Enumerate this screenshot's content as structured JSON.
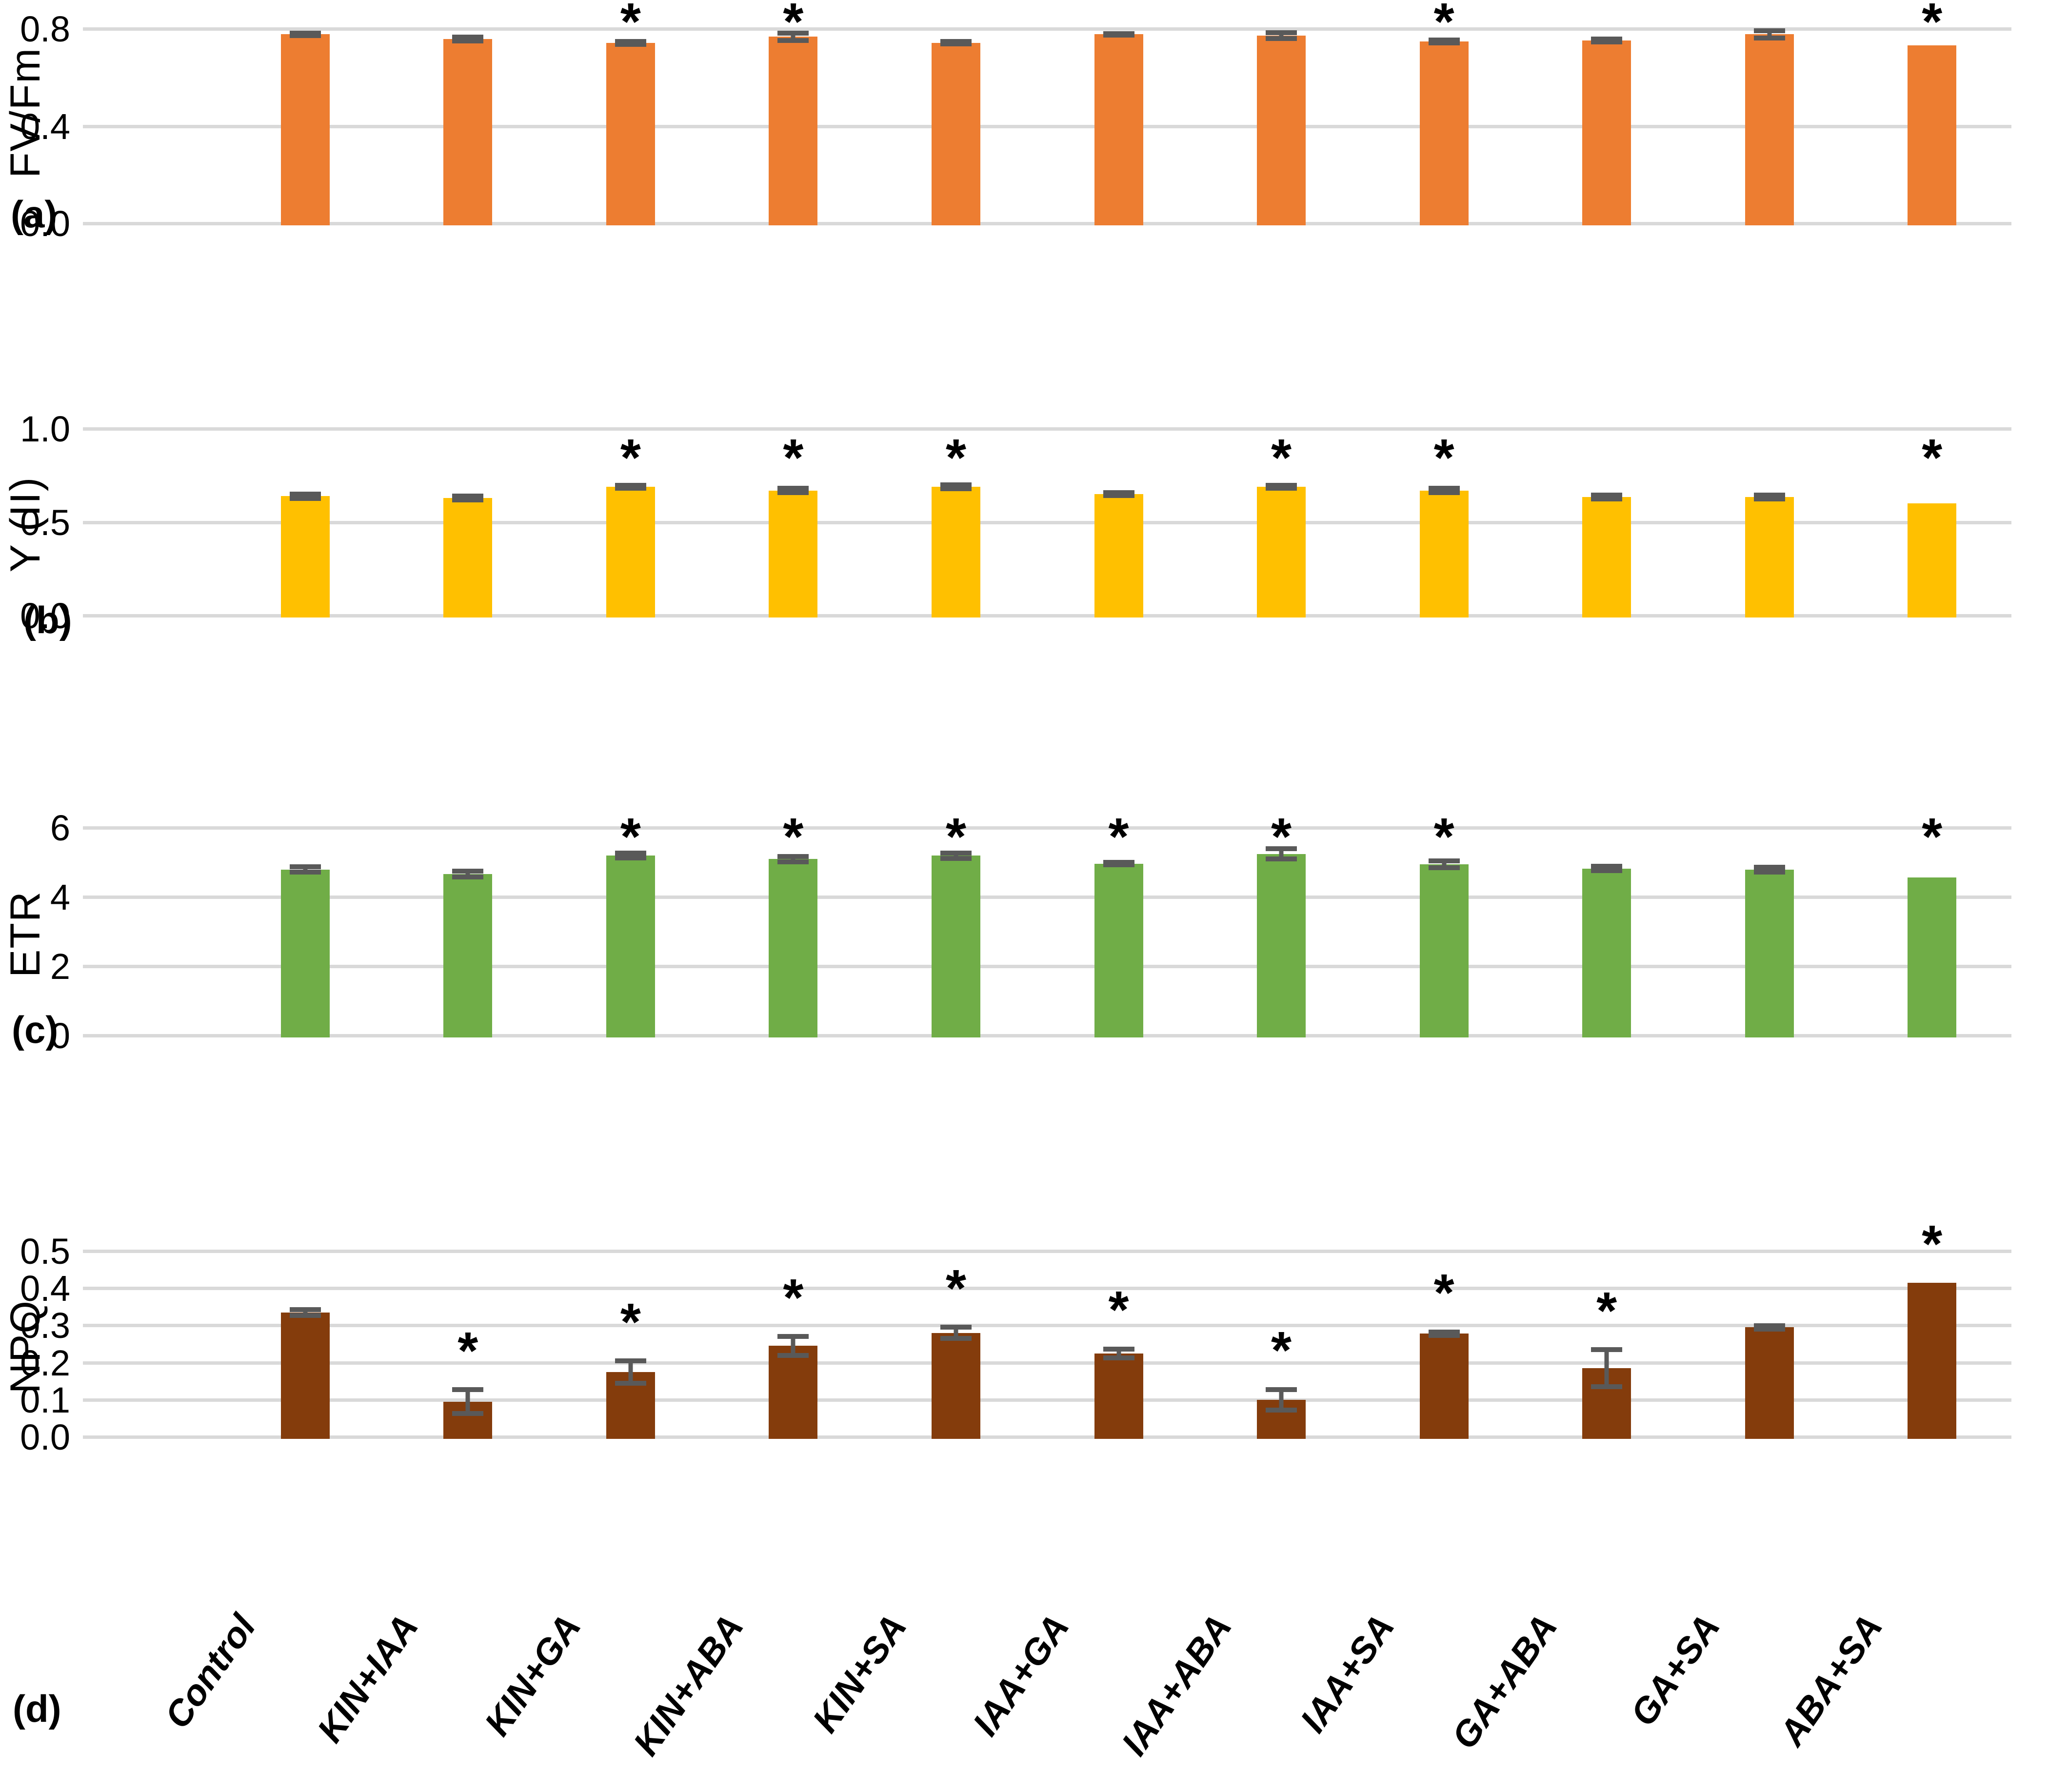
{
  "figure": {
    "panel_labels": [
      "(a)",
      "(b)",
      "(c)",
      "(d)"
    ]
  },
  "symbols": {
    "significance": "*"
  },
  "colors": {
    "panel_a_bar": "#ED7D31",
    "panel_b_bar": "#FFC000",
    "panel_c_bar": "#70AD47",
    "panel_d_bar": "#843C0C",
    "error_bar": "#595959",
    "gridline": "#D9D9D9"
  },
  "chart_data": [
    {
      "type": "bar",
      "panel": "(a)",
      "ylabel": "FV/Fm",
      "color": "#ED7D31",
      "categories": [
        "Control",
        "KIN+IAA",
        "KIN+GA",
        "KIN+ABA",
        "KIN+SA",
        "IAA+GA",
        "IAA+ABA",
        "IAA+SA",
        "GA+ABA",
        "GA+SA",
        "ABA+SA"
      ],
      "values": [
        0.785,
        0.765,
        0.75,
        0.775,
        0.75,
        0.785,
        0.78,
        0.755,
        0.76,
        0.785,
        0.74
      ],
      "errors": [
        0.005,
        0.008,
        0.006,
        0.015,
        0.005,
        0.004,
        0.012,
        0.006,
        0.006,
        0.015,
        0
      ],
      "significant": [
        false,
        false,
        true,
        true,
        false,
        false,
        false,
        true,
        false,
        false,
        true
      ],
      "yticks": [
        0,
        0.4,
        0.8
      ],
      "tick_labels": [
        "0.0",
        "0.4",
        "0.8"
      ],
      "ylim": [
        0,
        0.8
      ],
      "grid": true,
      "legend": "none"
    },
    {
      "type": "bar",
      "panel": "(b)",
      "ylabel": "Y (II)",
      "color": "#FFC000",
      "categories": [
        "Control",
        "KIN+IAA",
        "KIN+GA",
        "KIN+ABA",
        "KIN+SA",
        "IAA+GA",
        "IAA+ABA",
        "IAA+SA",
        "GA+ABA",
        "GA+SA",
        "ABA+SA"
      ],
      "values": [
        0.65,
        0.64,
        0.7,
        0.68,
        0.7,
        0.66,
        0.7,
        0.68,
        0.645,
        0.645,
        0.61
      ],
      "errors": [
        0.012,
        0.01,
        0.008,
        0.012,
        0.01,
        0.008,
        0.008,
        0.012,
        0.01,
        0.01,
        0
      ],
      "significant": [
        false,
        false,
        true,
        true,
        true,
        false,
        true,
        true,
        false,
        false,
        true
      ],
      "yticks": [
        0,
        0.5,
        1.0
      ],
      "tick_labels": [
        "0.0",
        "0.5",
        "1.0"
      ],
      "ylim": [
        0,
        1.0
      ],
      "grid": true,
      "legend": "none"
    },
    {
      "type": "bar",
      "panel": "(c)",
      "ylabel": "ETR",
      "color": "#70AD47",
      "categories": [
        "Control",
        "KIN+IAA",
        "KIN+GA",
        "KIN+ABA",
        "KIN+SA",
        "IAA+GA",
        "IAA+ABA",
        "IAA+SA",
        "GA+ABA",
        "GA+SA",
        "ABA+SA"
      ],
      "values": [
        4.85,
        4.72,
        5.25,
        5.15,
        5.25,
        5.02,
        5.3,
        5.0,
        4.88,
        4.85,
        4.62
      ],
      "errors": [
        0.08,
        0.08,
        0.07,
        0.08,
        0.08,
        0.04,
        0.15,
        0.1,
        0.06,
        0.07,
        0
      ],
      "significant": [
        false,
        false,
        true,
        true,
        true,
        true,
        true,
        true,
        false,
        false,
        true
      ],
      "yticks": [
        0,
        2,
        4,
        6
      ],
      "tick_labels": [
        "0",
        "2",
        "4",
        "6"
      ],
      "ylim": [
        0,
        6
      ],
      "grid": true,
      "legend": "none"
    },
    {
      "type": "bar",
      "panel": "(d)",
      "ylabel": "NPQ",
      "color": "#843C0C",
      "categories": [
        "Control",
        "KIN+IAA",
        "KIN+GA",
        "KIN+ABA",
        "KIN+SA",
        "IAA+GA",
        "IAA+ABA",
        "IAA+SA",
        "GA+ABA",
        "GA+SA",
        "ABA+SA"
      ],
      "values": [
        0.34,
        0.1,
        0.18,
        0.25,
        0.285,
        0.23,
        0.105,
        0.283,
        0.19,
        0.3,
        0.42
      ],
      "errors": [
        0.008,
        0.032,
        0.03,
        0.025,
        0.015,
        0.012,
        0.028,
        0.005,
        0.05,
        0.005,
        0
      ],
      "significant": [
        false,
        true,
        true,
        true,
        true,
        true,
        true,
        true,
        true,
        false,
        true
      ],
      "yticks": [
        0,
        0.1,
        0.2,
        0.3,
        0.4,
        0.5
      ],
      "tick_labels": [
        "0.0",
        "0.1",
        "0.2",
        "0.3",
        "0.4",
        "0.5"
      ],
      "ylim": [
        0,
        0.5
      ],
      "grid": true,
      "legend": "none"
    }
  ]
}
